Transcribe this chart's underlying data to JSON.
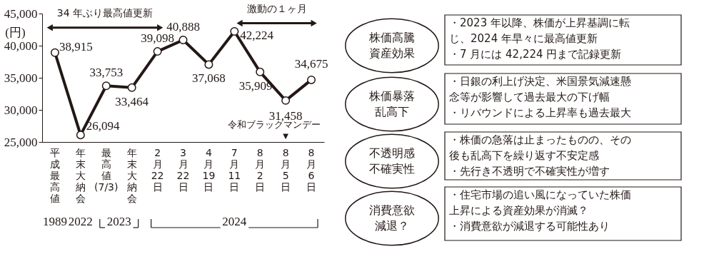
{
  "chart_data": [
    {
      "type": "line",
      "ylabel": "(円)",
      "categories": [
        "平成最高値",
        "年末大納会",
        "最高値(7/3)",
        "年末大納会",
        "2月22日",
        "3月22日",
        "4月19日",
        "7月11日",
        "8月2日",
        "8月5日",
        "8月6日"
      ],
      "series": [
        {
          "color": "#231815",
          "values": [
            38915,
            26094,
            33753,
            33464,
            39098,
            40888,
            37068,
            42224,
            35909,
            31458,
            34675
          ],
          "value_labels": [
            "38,915",
            "26,094",
            "33,753",
            "33,464",
            "39,098",
            "40,888",
            "37,068",
            "42,224",
            "35,909",
            "31,458",
            "34,675"
          ]
        }
      ],
      "ylim": [
        25000,
        45000
      ],
      "yticks": [
        {
          "value": 25000,
          "label": "25,000"
        },
        {
          "value": 30000,
          "label": "30,000"
        },
        {
          "value": 35000,
          "label": "35,000"
        },
        {
          "value": 40000,
          "label": "40,000"
        },
        {
          "value": 45000,
          "label": "45,000"
        }
      ],
      "marker": "circle",
      "line_style": "solid",
      "grid": false,
      "annotations": [
        "34 年ぶり最高値更新",
        "激動の１ヶ月",
        "令和ブラックマンデー",
        "1989",
        "2022",
        "2023",
        "2024",
        "▼"
      ]
    },
    {
      "type": "other",
      "annotations": [
        "株価高騰資産効果",
        "・2023 年以降、株価が上昇基調に転じ、2024 年早々に最高値更新・7 月には 42,224 円まで記録更新",
        "株価暴落乱高下",
        "・日銀の利上げ決定、米国景気減速懸念等が影響して過去最大の下げ幅・リバウンドによる上昇率も過去最大",
        "不透明感不確実性",
        "・株価の急落は止まったものの、その後も乱高下を繰り返す不安定感・先行き不透明で不確実性が増す",
        "消費意欲減退？",
        "・住宅市場の追い風になっていた株価上昇による資産効果が消滅？・消費意欲が減退する可能性あり"
      ]
    }
  ]
}
